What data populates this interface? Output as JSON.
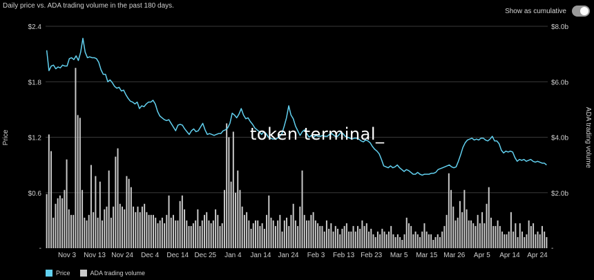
{
  "header": {
    "subtitle": "Daily price vs. ADA trading volume in the past 180 days.",
    "toggle_label": "Show as cumulative"
  },
  "watermark": "token terminal_",
  "colors": {
    "price": "#62d1f0",
    "volume": "#c9c9c9",
    "grid": "#3a3a3a",
    "background": "#000000"
  },
  "chart_data": {
    "type": "bar",
    "grid": true,
    "legend_placement": "bottom-left",
    "x_tick_labels": [
      "Nov 3",
      "Nov 13",
      "Nov 24",
      "Dec 4",
      "Dec 14",
      "Dec 25",
      "Jan 4",
      "Jan 14",
      "Jan 24",
      "Feb 3",
      "Feb 13",
      "Feb 23",
      "Mar 5",
      "Mar 15",
      "Mar 26",
      "Apr 5",
      "Apr 14",
      "Apr 24"
    ],
    "left_axis": {
      "label": "Price",
      "ticks": [
        "$2.4",
        "$1.8",
        "$1.2",
        "$0.6"
      ],
      "tick_values": [
        2.4,
        1.8,
        1.2,
        0.6
      ],
      "range": [
        0,
        2.4
      ]
    },
    "right_axis": {
      "label": "ADA trading volume",
      "ticks": [
        "$8.0b",
        "$6.0b",
        "$4.0b",
        "$2.0b"
      ],
      "tick_values": [
        8.0,
        6.0,
        4.0,
        2.0
      ],
      "range": [
        0,
        8.0
      ]
    },
    "zero_tick": "-",
    "series": [
      {
        "name": "Price",
        "kind": "line",
        "axis": "left",
        "values": [
          2.14,
          1.92,
          1.97,
          1.98,
          1.94,
          1.96,
          1.95,
          1.98,
          1.97,
          1.97,
          2.05,
          2.06,
          2.04,
          2.08,
          2.03,
          2.12,
          2.27,
          2.12,
          2.06,
          2.07,
          2.06,
          2.06,
          2.05,
          2.01,
          1.93,
          1.88,
          1.88,
          1.8,
          1.82,
          1.79,
          1.75,
          1.73,
          1.74,
          1.7,
          1.71,
          1.66,
          1.62,
          1.59,
          1.58,
          1.56,
          1.58,
          1.51,
          1.54,
          1.53,
          1.56,
          1.58,
          1.58,
          1.6,
          1.56,
          1.48,
          1.43,
          1.41,
          1.39,
          1.38,
          1.39,
          1.35,
          1.31,
          1.27,
          1.33,
          1.34,
          1.33,
          1.29,
          1.26,
          1.23,
          1.27,
          1.29,
          1.26,
          1.27,
          1.31,
          1.35,
          1.28,
          1.23,
          1.24,
          1.23,
          1.22,
          1.23,
          1.24,
          1.24,
          1.27,
          1.28,
          1.3,
          1.35,
          1.46,
          1.44,
          1.41,
          1.45,
          1.51,
          1.44,
          1.4,
          1.41,
          1.37,
          1.34,
          1.3,
          1.28,
          1.26,
          1.23,
          1.26,
          1.24,
          1.2,
          1.19,
          1.18,
          1.18,
          1.19,
          1.21,
          1.24,
          1.32,
          1.41,
          1.54,
          1.44,
          1.4,
          1.32,
          1.27,
          1.22,
          1.26,
          1.28,
          1.24,
          1.2,
          1.22,
          1.2,
          1.22,
          1.21,
          1.21,
          1.22,
          1.21,
          1.21,
          1.23,
          1.24,
          1.22,
          1.2,
          1.22,
          1.25,
          1.24,
          1.21,
          1.2,
          1.19,
          1.18,
          1.19,
          1.19,
          1.18,
          1.16,
          1.15,
          1.17,
          1.16,
          1.14,
          1.1,
          1.07,
          1.05,
          1.02,
          0.96,
          0.89,
          0.88,
          0.87,
          0.89,
          0.87,
          0.88,
          0.9,
          0.87,
          0.85,
          0.83,
          0.85,
          0.84,
          0.82,
          0.8,
          0.8,
          0.82,
          0.8,
          0.79,
          0.8,
          0.8,
          0.8,
          0.81,
          0.81,
          0.82,
          0.85,
          0.86,
          0.87,
          0.88,
          0.89,
          0.9,
          0.88,
          0.87,
          0.88,
          0.94,
          1.01,
          1.09,
          1.14,
          1.17,
          1.18,
          1.19,
          1.17,
          1.18,
          1.17,
          1.19,
          1.19,
          1.17,
          1.16,
          1.18,
          1.21,
          1.16,
          1.16,
          1.13,
          1.06,
          1.03,
          1.05,
          1.04,
          1.05,
          1.04,
          0.98,
          0.94,
          0.96,
          0.95,
          0.96,
          0.94,
          0.95,
          0.96,
          0.94,
          0.93,
          0.94,
          0.93,
          0.92,
          0.92,
          0.9
        ]
      },
      {
        "name": "ADA trading volume",
        "kind": "bar",
        "axis": "right",
        "values": [
          1.95,
          4.1,
          3.5,
          1.1,
          1.6,
          1.8,
          1.9,
          1.8,
          2.1,
          3.2,
          1.4,
          1.2,
          1.2,
          6.5,
          4.8,
          4.7,
          2.1,
          1.1,
          1.0,
          1.2,
          3.0,
          1.3,
          2.6,
          1.1,
          2.4,
          1.0,
          1.4,
          1.5,
          2.8,
          1.1,
          1.5,
          3.3,
          3.6,
          1.6,
          1.5,
          1.4,
          2.6,
          2.5,
          2.2,
          1.5,
          1.3,
          1.5,
          1.3,
          1.5,
          1.6,
          1.3,
          1.2,
          1.2,
          1.2,
          1.1,
          0.9,
          1.0,
          1.1,
          0.9,
          1.2,
          1.9,
          1.1,
          1.2,
          1.0,
          1.0,
          1.7,
          1.9,
          1.4,
          1.0,
          0.8,
          0.8,
          0.9,
          1.0,
          1.4,
          0.8,
          1.0,
          1.2,
          1.3,
          1.0,
          0.9,
          1.0,
          1.4,
          1.2,
          0.8,
          0.9,
          2.1,
          4.5,
          4.0,
          2.4,
          4.2,
          2.0,
          2.8,
          2.1,
          1.5,
          1.2,
          1.3,
          1.0,
          0.7,
          0.9,
          1.0,
          1.0,
          0.8,
          0.9,
          0.7,
          1.2,
          1.9,
          1.1,
          1.0,
          0.8,
          1.0,
          1.2,
          0.6,
          1.0,
          1.1,
          0.8,
          1.2,
          1.6,
          1.0,
          0.8,
          1.5,
          2.8,
          1.2,
          1.0,
          1.0,
          1.2,
          1.3,
          1.0,
          0.9,
          0.8,
          0.8,
          0.6,
          1.0,
          0.7,
          0.9,
          0.6,
          0.8,
          0.7,
          0.5,
          0.7,
          0.8,
          0.9,
          0.6,
          0.6,
          0.8,
          0.6,
          0.8,
          0.7,
          1.0,
          0.8,
          0.9,
          0.6,
          0.7,
          0.5,
          0.4,
          0.6,
          0.5,
          0.7,
          0.6,
          0.5,
          0.6,
          0.8,
          0.5,
          0.4,
          0.5,
          0.4,
          0.3,
          0.5,
          1.1,
          0.9,
          0.8,
          0.5,
          0.6,
          0.5,
          0.4,
          0.6,
          0.9,
          0.6,
          0.5,
          0.5,
          0.3,
          0.4,
          0.5,
          0.4,
          0.6,
          0.8,
          1.2,
          2.7,
          2.1,
          1.5,
          1.0,
          1.1,
          1.7,
          1.3,
          2.1,
          1.4,
          1.0,
          1.0,
          0.9,
          0.8,
          1.2,
          0.9,
          1.3,
          0.9,
          1.6,
          2.2,
          1.1,
          0.8,
          0.8,
          1.0,
          0.8,
          0.6,
          0.5,
          0.5,
          0.6,
          1.3,
          0.6,
          0.9,
          0.4,
          0.9,
          0.6,
          0.4,
          0.5,
          1.0,
          0.8,
          0.9,
          0.5,
          0.6,
          0.5,
          0.8,
          0.6,
          0.4
        ]
      }
    ]
  },
  "legend": {
    "price_label": "Price",
    "volume_label": "ADA trading volume"
  }
}
